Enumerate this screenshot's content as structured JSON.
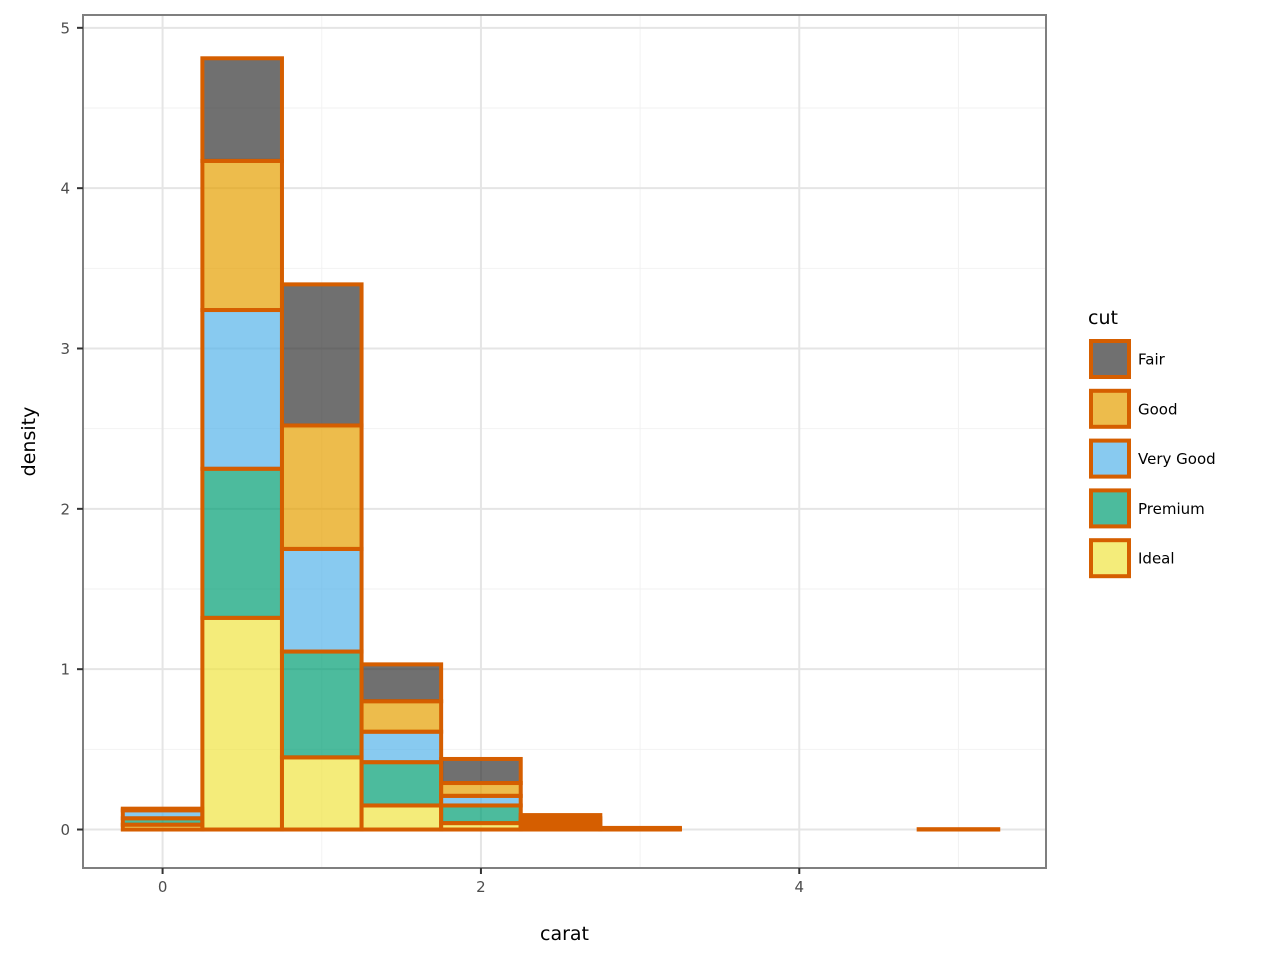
{
  "chart_data": {
    "type": "bar",
    "subtype": "stacked-histogram",
    "title": "",
    "xlabel": "carat",
    "ylabel": "density",
    "xlim": [
      -0.5,
      5.55
    ],
    "ylim": [
      -0.24,
      5.08
    ],
    "x_ticks": [
      0,
      2,
      4
    ],
    "y_ticks": [
      0,
      1,
      2,
      3,
      4,
      5
    ],
    "grid": true,
    "legend": {
      "title": "cut",
      "position": "right"
    },
    "bin_width": 0.5,
    "bin_edges": [
      -0.25,
      0.25,
      0.75,
      1.25,
      1.75,
      2.25,
      2.75,
      3.25,
      3.75,
      4.25,
      4.75,
      5.25
    ],
    "stack_order": [
      "Ideal",
      "Premium",
      "Very Good",
      "Good",
      "Fair"
    ],
    "series": [
      {
        "name": "Fair",
        "color": "#333333",
        "values": [
          0.0,
          0.64,
          0.88,
          0.23,
          0.15,
          0.02,
          0.005,
          0.0,
          0.0,
          0.0,
          0.002
        ]
      },
      {
        "name": "Good",
        "color": "#E69F00",
        "values": [
          0.01,
          0.93,
          0.77,
          0.19,
          0.08,
          0.02,
          0.0,
          0.0,
          0.0,
          0.0,
          0.0
        ]
      },
      {
        "name": "Very Good",
        "color": "#56B4E9",
        "values": [
          0.05,
          0.99,
          0.64,
          0.19,
          0.06,
          0.02,
          0.002,
          0.0,
          0.0,
          0.0,
          0.0
        ]
      },
      {
        "name": "Premium",
        "color": "#009E73",
        "values": [
          0.04,
          0.93,
          0.66,
          0.27,
          0.11,
          0.02,
          0.003,
          0.0,
          0.0,
          0.0,
          0.0
        ]
      },
      {
        "name": "Ideal",
        "color": "#F0E442",
        "values": [
          0.03,
          1.32,
          0.45,
          0.15,
          0.04,
          0.01,
          0.0,
          0.0,
          0.0,
          0.0,
          0.0
        ]
      }
    ],
    "bar_outline_color": "#D55E00",
    "fill_opacity": 0.7
  }
}
